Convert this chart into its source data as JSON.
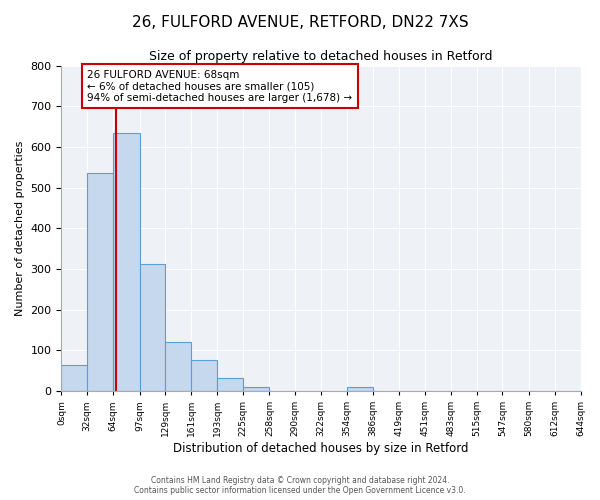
{
  "title": "26, FULFORD AVENUE, RETFORD, DN22 7XS",
  "subtitle": "Size of property relative to detached houses in Retford",
  "xlabel": "Distribution of detached houses by size in Retford",
  "ylabel": "Number of detached properties",
  "bar_color": "#c5d8ee",
  "bar_edge_color": "#5a9fd4",
  "annotation_line_color": "#cc0000",
  "background_color": "#eef2f7",
  "grid_color": "#ffffff",
  "bin_edges": [
    0,
    32,
    64,
    97,
    129,
    161,
    193,
    225,
    258,
    290,
    322,
    354,
    386,
    419,
    451,
    483,
    515,
    547,
    580,
    612,
    644
  ],
  "bin_labels": [
    "0sqm",
    "32sqm",
    "64sqm",
    "97sqm",
    "129sqm",
    "161sqm",
    "193sqm",
    "225sqm",
    "258sqm",
    "290sqm",
    "322sqm",
    "354sqm",
    "386sqm",
    "419sqm",
    "451sqm",
    "483sqm",
    "515sqm",
    "547sqm",
    "580sqm",
    "612sqm",
    "644sqm"
  ],
  "counts": [
    65,
    535,
    635,
    312,
    120,
    76,
    32,
    11,
    0,
    0,
    0,
    10,
    0,
    0,
    0,
    0,
    0,
    0,
    0,
    0
  ],
  "property_size": 68,
  "annotation_text_line1": "26 FULFORD AVENUE: 68sqm",
  "annotation_text_line2": "← 6% of detached houses are smaller (105)",
  "annotation_text_line3": "94% of semi-detached houses are larger (1,678) →",
  "footer_line1": "Contains HM Land Registry data © Crown copyright and database right 2024.",
  "footer_line2": "Contains public sector information licensed under the Open Government Licence v3.0.",
  "ylim": [
    0,
    800
  ],
  "yticks": [
    0,
    100,
    200,
    300,
    400,
    500,
    600,
    700,
    800
  ],
  "xlim": [
    0,
    644
  ]
}
